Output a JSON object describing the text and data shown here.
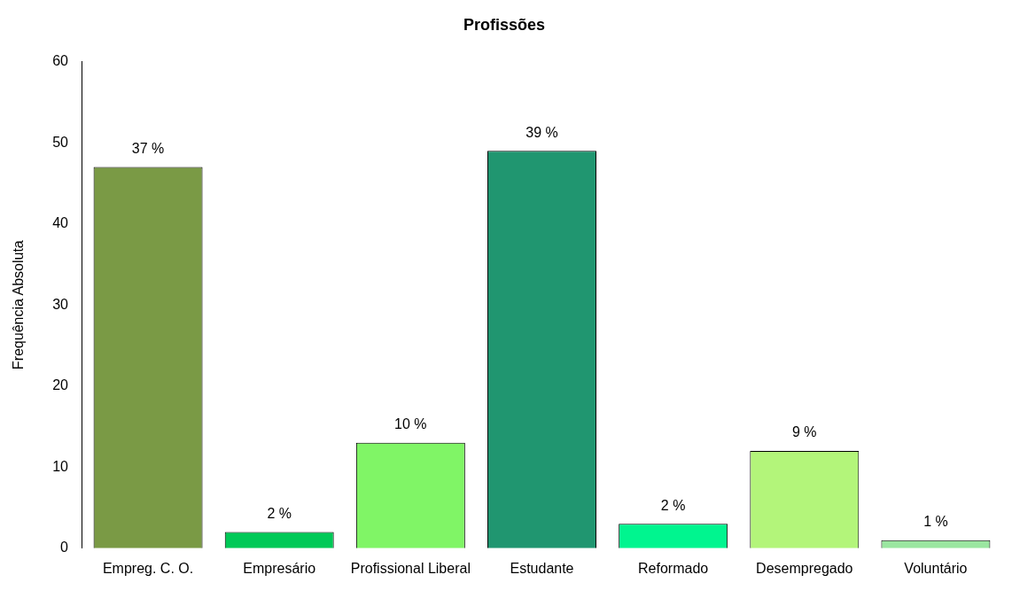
{
  "chart_data": {
    "type": "bar",
    "title": "Profissões",
    "ylabel": "Frequência Absoluta",
    "categories": [
      "Empreg. C. O.",
      "Empresário",
      "Profissional Liberal",
      "Estudante",
      "Reformado",
      "Desempregado",
      "Voluntário"
    ],
    "values": [
      47,
      2,
      13,
      49,
      3,
      12,
      1
    ],
    "colors": [
      "#7a9a45",
      "#00c957",
      "#80f566",
      "#209670",
      "#00f58f",
      "#b3f57a",
      "#9ae6a0"
    ],
    "annotations": [
      {
        "text": "37 %",
        "x": "Empreg. C. O.",
        "y": 47
      },
      {
        "text": "2 %",
        "x": "Empresário",
        "y": 2
      },
      {
        "text": "10 %",
        "x": "Profissional Liberal",
        "y": 13
      },
      {
        "text": "39 %",
        "x": "Estudante",
        "y": 49
      },
      {
        "text": "2 %",
        "x": "Reformado",
        "y": 3
      },
      {
        "text": "9 %",
        "x": "Desempregado",
        "y": 12
      },
      {
        "text": "1 %",
        "x": "Voluntário",
        "y": 1
      }
    ],
    "ylim": [
      0,
      60
    ],
    "yticks": [
      0,
      10,
      20,
      30,
      40,
      50,
      60
    ],
    "grid": false,
    "legend": false
  }
}
